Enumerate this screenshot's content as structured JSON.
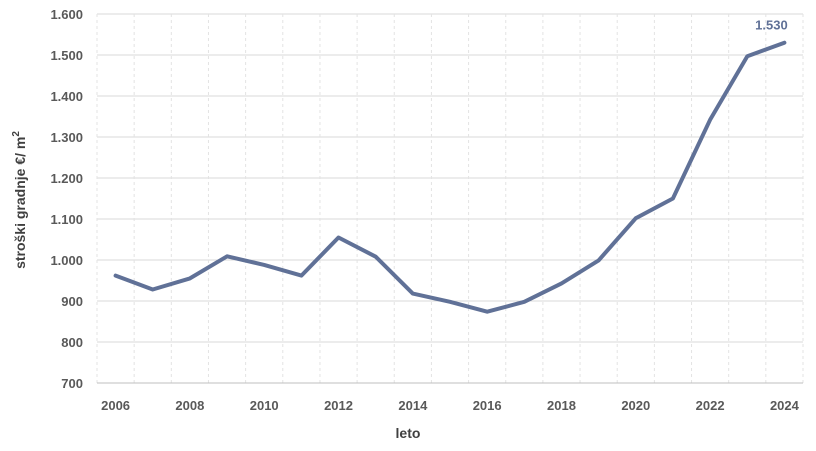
{
  "chart_data": {
    "type": "line",
    "xlabel": "leto",
    "ylabel_main": "stroški gradnje €/ m",
    "ylabel_sup": "2",
    "ylim": [
      700,
      1600
    ],
    "y_ticks": [
      700,
      800,
      900,
      1000,
      1100,
      1200,
      1300,
      1400,
      1500,
      1600
    ],
    "y_tick_labels": [
      "700",
      "800",
      "900",
      "1.000",
      "1.100",
      "1.200",
      "1.300",
      "1.400",
      "1.500",
      "1.600"
    ],
    "x_ticks": [
      2006,
      2008,
      2010,
      2012,
      2014,
      2016,
      2018,
      2020,
      2022,
      2024
    ],
    "x_tick_labels": [
      "2006",
      "2008",
      "2010",
      "2012",
      "2014",
      "2016",
      "2018",
      "2020",
      "2022",
      "2024"
    ],
    "x": [
      2006,
      2007,
      2008,
      2009,
      2010,
      2011,
      2012,
      2013,
      2014,
      2015,
      2016,
      2017,
      2018,
      2019,
      2020,
      2021,
      2022,
      2023,
      2024
    ],
    "values": [
      962,
      928,
      955,
      1009,
      988,
      962,
      1055,
      1008,
      918,
      898,
      874,
      898,
      943,
      999,
      1102,
      1150,
      1342,
      1497,
      1530
    ],
    "data_label": "1.530",
    "line_color": "#607197",
    "grid": true
  }
}
